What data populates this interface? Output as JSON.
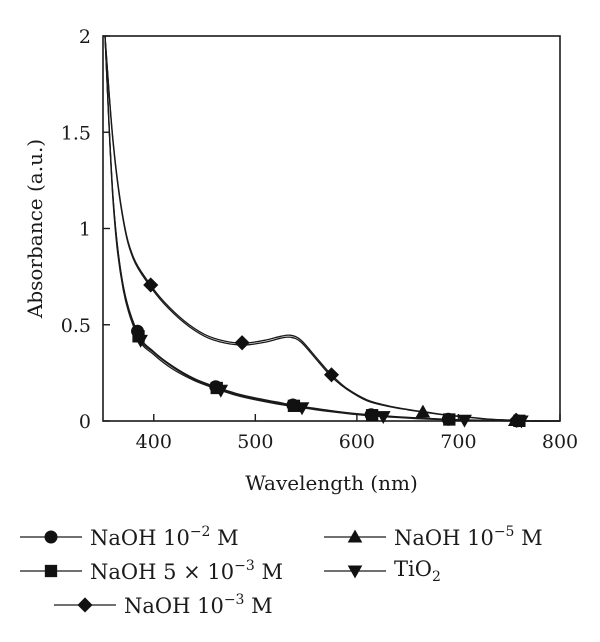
{
  "chart_data": {
    "type": "line",
    "title": "",
    "xlabel": "Wavelength (nm)",
    "ylabel": "Absorbance (a.u.)",
    "xlim": [
      350,
      800
    ],
    "ylim": [
      0,
      2
    ],
    "xticks": [
      "400",
      "500",
      "600",
      "700",
      "800"
    ],
    "yticks": [
      "0",
      "0.5",
      "1",
      "1.5",
      "2"
    ],
    "grid": false,
    "legend_position": "bottom",
    "series": [
      {
        "name": "NaOH 10",
        "name_sup": "−2",
        "name_tail": " M",
        "marker": "circle",
        "group": "low",
        "x": [
          352,
          360,
          370,
          385,
          400,
          420,
          440,
          460,
          480,
          500,
          520,
          540,
          560,
          580,
          600,
          620,
          640,
          660,
          680,
          700,
          720,
          740,
          760,
          780,
          800
        ],
        "y": [
          2.0,
          1.15,
          0.7,
          0.45,
          0.36,
          0.28,
          0.22,
          0.18,
          0.145,
          0.12,
          0.1,
          0.08,
          0.065,
          0.05,
          0.038,
          0.03,
          0.022,
          0.016,
          0.011,
          0.007,
          0.004,
          0.002,
          0.001,
          0.0,
          0.0
        ],
        "marker_x": [
          384,
          461,
          537,
          614,
          690,
          758
        ]
      },
      {
        "name": "NaOH 5 × 10",
        "name_sup": "−3",
        "name_tail": " M",
        "marker": "square",
        "group": "low",
        "x": [
          352,
          360,
          370,
          385,
          400,
          420,
          440,
          460,
          480,
          500,
          520,
          540,
          560,
          580,
          600,
          620,
          640,
          660,
          680,
          700,
          720,
          740,
          760,
          780,
          800
        ],
        "y": [
          2.0,
          1.15,
          0.7,
          0.44,
          0.355,
          0.275,
          0.215,
          0.175,
          0.14,
          0.115,
          0.095,
          0.077,
          0.062,
          0.048,
          0.036,
          0.028,
          0.021,
          0.015,
          0.01,
          0.006,
          0.003,
          0.002,
          0.001,
          0.0,
          0.0
        ],
        "marker_x": [
          385,
          462,
          538,
          615,
          691,
          760
        ]
      },
      {
        "name": "NaOH 10",
        "name_sup": "−3",
        "name_tail": " M",
        "marker": "diamond",
        "group": "high",
        "x": [
          352,
          360,
          370,
          380,
          395,
          410,
          430,
          450,
          470,
          490,
          510,
          525,
          535,
          545,
          560,
          575,
          590,
          610,
          630,
          650,
          670,
          690,
          710,
          730,
          750,
          770,
          800
        ],
        "y": [
          2.0,
          1.45,
          1.05,
          0.85,
          0.72,
          0.62,
          0.52,
          0.45,
          0.415,
          0.405,
          0.42,
          0.44,
          0.445,
          0.42,
          0.33,
          0.24,
          0.17,
          0.11,
          0.08,
          0.06,
          0.045,
          0.03,
          0.02,
          0.01,
          0.005,
          0.0,
          0.0
        ],
        "marker_x": [
          397,
          487,
          575,
          757
        ]
      },
      {
        "name": "NaOH 10",
        "name_sup": "−5",
        "name_tail": " M",
        "marker": "triangle-up",
        "group": "high",
        "x": [
          352,
          360,
          370,
          380,
          395,
          410,
          430,
          450,
          470,
          490,
          510,
          525,
          535,
          545,
          560,
          575,
          590,
          610,
          630,
          650,
          670,
          690,
          710,
          730,
          750,
          770,
          800
        ],
        "y": [
          2.0,
          1.44,
          1.04,
          0.84,
          0.71,
          0.61,
          0.51,
          0.44,
          0.405,
          0.395,
          0.41,
          0.43,
          0.435,
          0.41,
          0.32,
          0.23,
          0.165,
          0.105,
          0.077,
          0.058,
          0.043,
          0.029,
          0.019,
          0.009,
          0.004,
          0.0,
          0.0
        ],
        "marker_x": [
          665,
          756
        ]
      },
      {
        "name": "TiO",
        "name_sub": "2",
        "name_tail": "",
        "marker": "triangle-down",
        "group": "low",
        "x": [
          352,
          360,
          370,
          385,
          400,
          420,
          440,
          460,
          480,
          500,
          520,
          540,
          560,
          580,
          600,
          620,
          640,
          660,
          680,
          700,
          720,
          740,
          760,
          780,
          800
        ],
        "y": [
          2.0,
          1.13,
          0.68,
          0.43,
          0.345,
          0.265,
          0.21,
          0.17,
          0.135,
          0.11,
          0.09,
          0.073,
          0.058,
          0.045,
          0.033,
          0.025,
          0.018,
          0.012,
          0.008,
          0.005,
          0.002,
          0.001,
          0.0,
          0.0,
          0.0
        ],
        "marker_x": [
          387,
          466,
          546,
          626,
          706,
          762
        ]
      }
    ]
  }
}
